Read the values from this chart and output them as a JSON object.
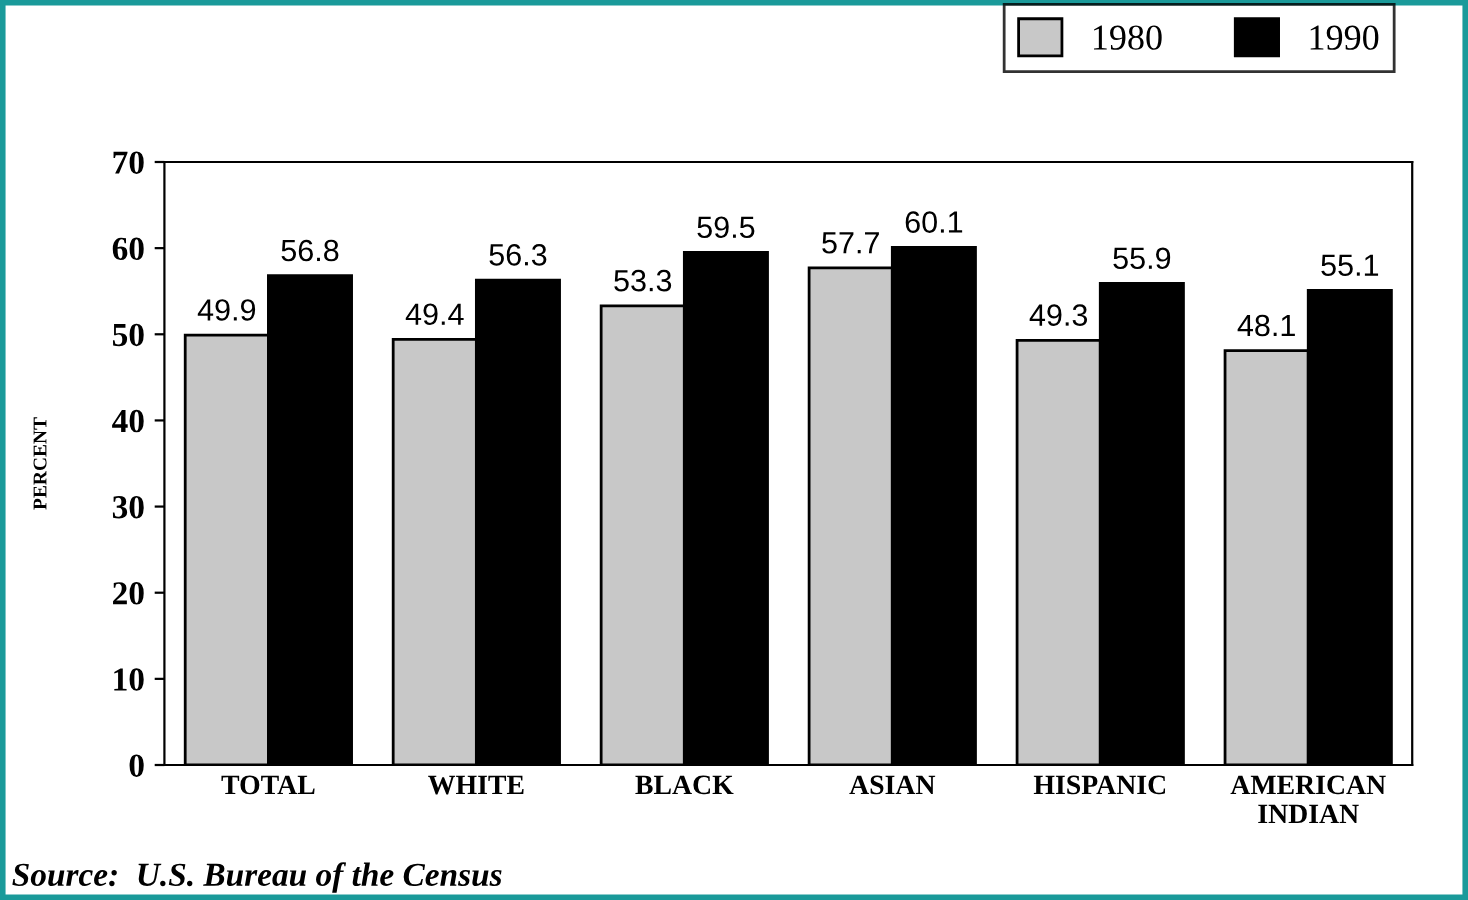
{
  "chart_data": {
    "type": "bar",
    "ylabel": "PERCENT",
    "categories": [
      "TOTAL",
      "WHITE",
      "BLACK",
      "ASIAN",
      "HISPANIC",
      "AMERICAN\nINDIAN"
    ],
    "series": [
      {
        "name": "1980",
        "color": "#c8c8c8",
        "values": [
          49.9,
          49.4,
          53.3,
          57.7,
          49.3,
          48.1
        ]
      },
      {
        "name": "1990",
        "color": "#000000",
        "values": [
          56.8,
          56.3,
          59.5,
          60.1,
          55.9,
          55.1
        ]
      }
    ],
    "ylim": [
      0,
      70
    ],
    "yticks": [
      0,
      10,
      20,
      30,
      40,
      50,
      60,
      70
    ],
    "grid": false,
    "legend": "top right",
    "data_labels": true,
    "annotations": [
      "Source:  U.S. Bureau of the Census"
    ]
  }
}
